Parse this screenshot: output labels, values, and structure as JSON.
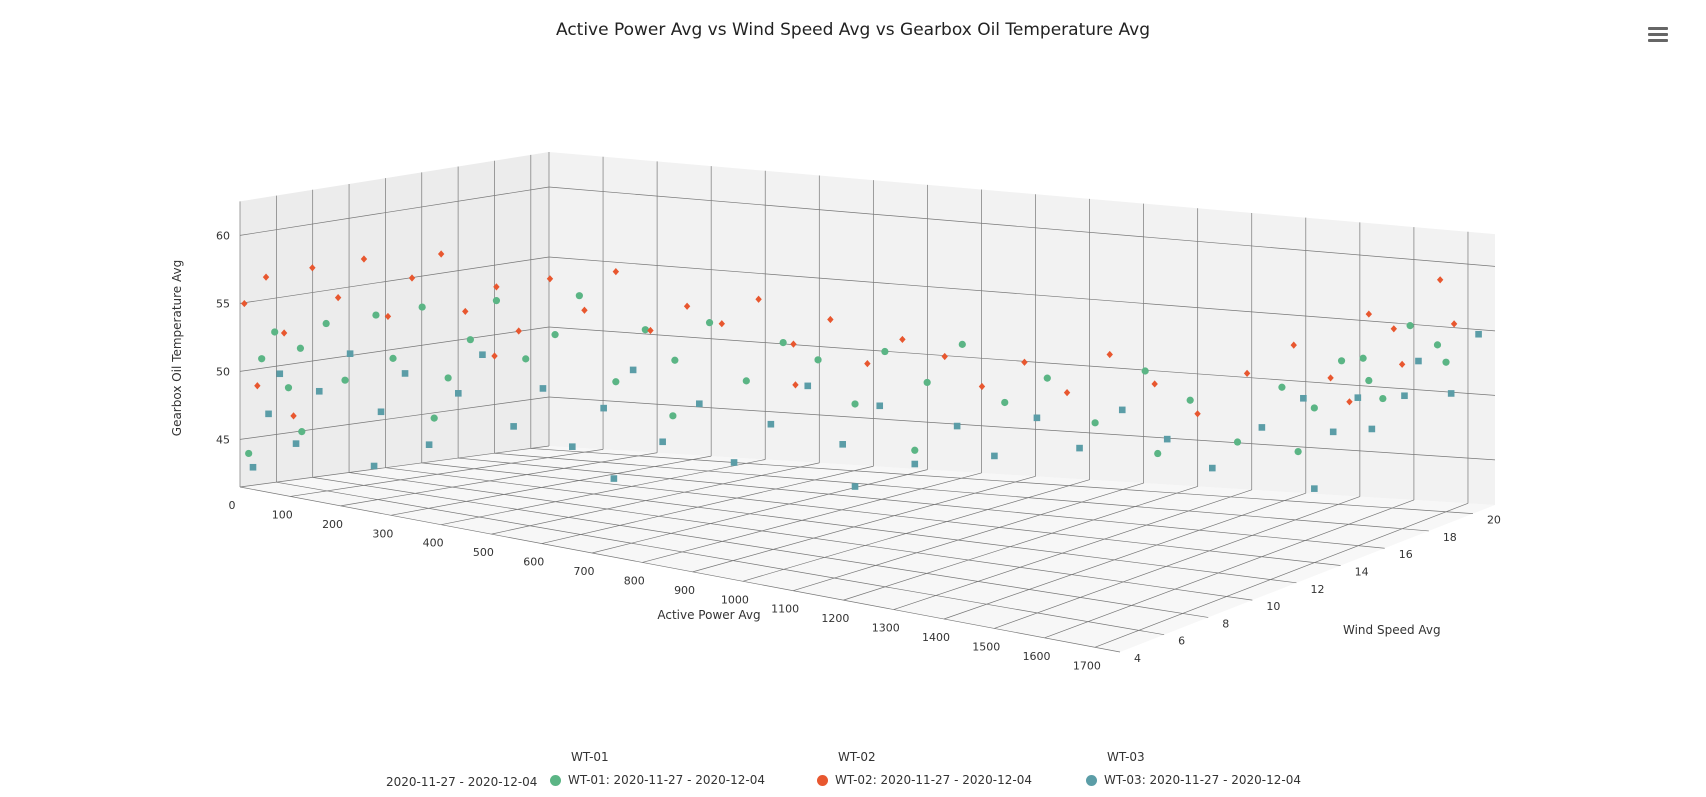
{
  "chart_data": {
    "type": "scatter3d",
    "title": "Active Power Avg vs Wind Speed Avg vs Gearbox Oil Temperature Avg",
    "xlabel": "Active Power Avg",
    "ylabel": "Wind Speed Avg",
    "zlabel": "Gearbox Oil Temperature Avg",
    "xlim": [
      0,
      1750
    ],
    "ylim": [
      4,
      21
    ],
    "zlim": [
      41.5,
      62.5
    ],
    "x_ticks": [
      0,
      100,
      200,
      300,
      400,
      500,
      600,
      700,
      800,
      900,
      1000,
      1100,
      1200,
      1300,
      1400,
      1500,
      1600,
      1700
    ],
    "y_ticks": [
      4,
      6,
      8,
      10,
      12,
      14,
      16,
      18,
      20
    ],
    "z_ticks": [
      45,
      50,
      55,
      60
    ],
    "grid": true,
    "legend_position": "bottom",
    "series": [
      {
        "name": "WT-01: 2020-11-27 - 2020-12-04",
        "color": "#5bb585",
        "marker": "circle",
        "points": [
          [
            10,
            4.2,
            44
          ],
          [
            25,
            4.5,
            51
          ],
          [
            40,
            4.8,
            53
          ],
          [
            60,
            5,
            49
          ],
          [
            80,
            5.1,
            52
          ],
          [
            120,
            5.4,
            54
          ],
          [
            150,
            5.6,
            50
          ],
          [
            200,
            5.9,
            55
          ],
          [
            230,
            6,
            52
          ],
          [
            280,
            6.2,
            56
          ],
          [
            320,
            6.5,
            51
          ],
          [
            360,
            6.6,
            54
          ],
          [
            400,
            6.9,
            57
          ],
          [
            450,
            7.1,
            53
          ],
          [
            500,
            7.3,
            55
          ],
          [
            540,
            7.5,
            58
          ],
          [
            600,
            7.8,
            52
          ],
          [
            650,
            8,
            56
          ],
          [
            700,
            8.2,
            54
          ],
          [
            760,
            8.4,
            57
          ],
          [
            820,
            8.7,
            53
          ],
          [
            880,
            9,
            56
          ],
          [
            940,
            9.2,
            55
          ],
          [
            1000,
            9.5,
            52
          ],
          [
            1050,
            9.7,
            56
          ],
          [
            1120,
            10,
            54
          ],
          [
            1180,
            10.2,
            57
          ],
          [
            1250,
            10.5,
            53
          ],
          [
            1320,
            10.8,
            55
          ],
          [
            1400,
            11.1,
            52
          ],
          [
            1480,
            11.5,
            56
          ],
          [
            1550,
            11.9,
            54
          ],
          [
            1620,
            12.4,
            51
          ],
          [
            1680,
            13,
            55
          ],
          [
            1700,
            14,
            53
          ],
          [
            1710,
            15,
            56
          ],
          [
            1720,
            16,
            54
          ],
          [
            1705,
            17,
            52
          ],
          [
            1715,
            18,
            57
          ],
          [
            1725,
            19,
            55
          ],
          [
            1700,
            20,
            53
          ],
          [
            1690,
            13.5,
            50
          ],
          [
            1730,
            15.5,
            56
          ],
          [
            90,
            4.9,
            46
          ],
          [
            300,
            6.3,
            48
          ],
          [
            700,
            8.1,
            50
          ],
          [
            1100,
            9.9,
            49
          ],
          [
            1500,
            11.6,
            50
          ]
        ]
      },
      {
        "name": "WT-02: 2020-11-27 - 2020-12-04",
        "color": "#e8572f",
        "marker": "diamond",
        "points": [
          [
            5,
            4.1,
            55
          ],
          [
            30,
            4.6,
            57
          ],
          [
            55,
            4.9,
            53
          ],
          [
            100,
            5.2,
            58
          ],
          [
            140,
            5.5,
            56
          ],
          [
            180,
            5.8,
            59
          ],
          [
            220,
            6,
            55
          ],
          [
            260,
            6.2,
            58
          ],
          [
            310,
            6.4,
            60
          ],
          [
            350,
            6.6,
            56
          ],
          [
            400,
            6.9,
            58
          ],
          [
            440,
            7,
            55
          ],
          [
            490,
            7.3,
            59
          ],
          [
            550,
            7.5,
            57
          ],
          [
            600,
            7.8,
            60
          ],
          [
            660,
            8,
            56
          ],
          [
            720,
            8.3,
            58
          ],
          [
            780,
            8.5,
            57
          ],
          [
            840,
            8.8,
            59
          ],
          [
            900,
            9,
            56
          ],
          [
            960,
            9.3,
            58
          ],
          [
            1020,
            9.6,
            55
          ],
          [
            1080,
            9.8,
            57
          ],
          [
            1150,
            10.1,
            56
          ],
          [
            1210,
            10.4,
            54
          ],
          [
            1280,
            10.7,
            56
          ],
          [
            1350,
            11,
            54
          ],
          [
            1420,
            11.3,
            57
          ],
          [
            1490,
            11.7,
            55
          ],
          [
            1560,
            12,
            53
          ],
          [
            1630,
            12.6,
            56
          ],
          [
            1690,
            13.3,
            58
          ],
          [
            1710,
            14.5,
            55
          ],
          [
            1720,
            16,
            59
          ],
          [
            1705,
            17.5,
            57
          ],
          [
            1730,
            19,
            60
          ],
          [
            1715,
            20,
            56
          ],
          [
            1700,
            18,
            54
          ],
          [
            1725,
            15,
            53
          ],
          [
            20,
            4.4,
            49
          ],
          [
            70,
            5,
            47
          ],
          [
            400,
            6.8,
            53
          ],
          [
            900,
            9.1,
            53
          ],
          [
            1300,
            10.8,
            52
          ]
        ]
      },
      {
        "name": "WT-03: 2020-11-27 - 2020-12-04",
        "color": "#5b9da7",
        "marker": "square",
        "points": [
          [
            15,
            4.3,
            43
          ],
          [
            35,
            4.6,
            47
          ],
          [
            50,
            4.8,
            50
          ],
          [
            75,
            5,
            45
          ],
          [
            110,
            5.3,
            49
          ],
          [
            160,
            5.6,
            52
          ],
          [
            210,
            5.9,
            48
          ],
          [
            250,
            6.1,
            51
          ],
          [
            290,
            6.3,
            46
          ],
          [
            340,
            6.5,
            50
          ],
          [
            380,
            6.7,
            53
          ],
          [
            430,
            7,
            48
          ],
          [
            480,
            7.2,
            51
          ],
          [
            530,
            7.4,
            47
          ],
          [
            580,
            7.7,
            50
          ],
          [
            630,
            7.9,
            53
          ],
          [
            680,
            8.1,
            48
          ],
          [
            740,
            8.4,
            51
          ],
          [
            800,
            8.6,
            47
          ],
          [
            860,
            8.9,
            50
          ],
          [
            920,
            9.2,
            53
          ],
          [
            980,
            9.4,
            49
          ],
          [
            1040,
            9.7,
            52
          ],
          [
            1100,
            9.9,
            48
          ],
          [
            1170,
            10.2,
            51
          ],
          [
            1230,
            10.5,
            49
          ],
          [
            1300,
            10.8,
            52
          ],
          [
            1370,
            11.1,
            50
          ],
          [
            1440,
            11.4,
            53
          ],
          [
            1510,
            11.8,
            51
          ],
          [
            1580,
            12.2,
            49
          ],
          [
            1650,
            12.8,
            52
          ],
          [
            1700,
            13.5,
            54
          ],
          [
            1715,
            14.5,
            51
          ],
          [
            1720,
            15.5,
            53
          ],
          [
            1705,
            16.5,
            50
          ],
          [
            1725,
            17.5,
            52
          ],
          [
            1710,
            18.5,
            54
          ],
          [
            1730,
            19.5,
            51
          ],
          [
            1740,
            20.5,
            55
          ],
          [
            1700,
            14,
            47
          ],
          [
            600,
            7.7,
            45
          ],
          [
            1000,
            9.5,
            46
          ],
          [
            200,
            5.8,
            44
          ]
        ]
      }
    ]
  },
  "menu_icon": "hamburger-menu-icon",
  "legend": {
    "row_label": "2020-11-27 - 2020-12-04",
    "groups": [
      {
        "title": "WT-01",
        "label": "WT-01: 2020-11-27 - 2020-12-04",
        "color": "#5bb585"
      },
      {
        "title": "WT-02",
        "label": "WT-02: 2020-11-27 - 2020-12-04",
        "color": "#e8572f"
      },
      {
        "title": "WT-03",
        "label": "WT-03: 2020-11-27 - 2020-12-04",
        "color": "#5b9da7"
      }
    ]
  }
}
